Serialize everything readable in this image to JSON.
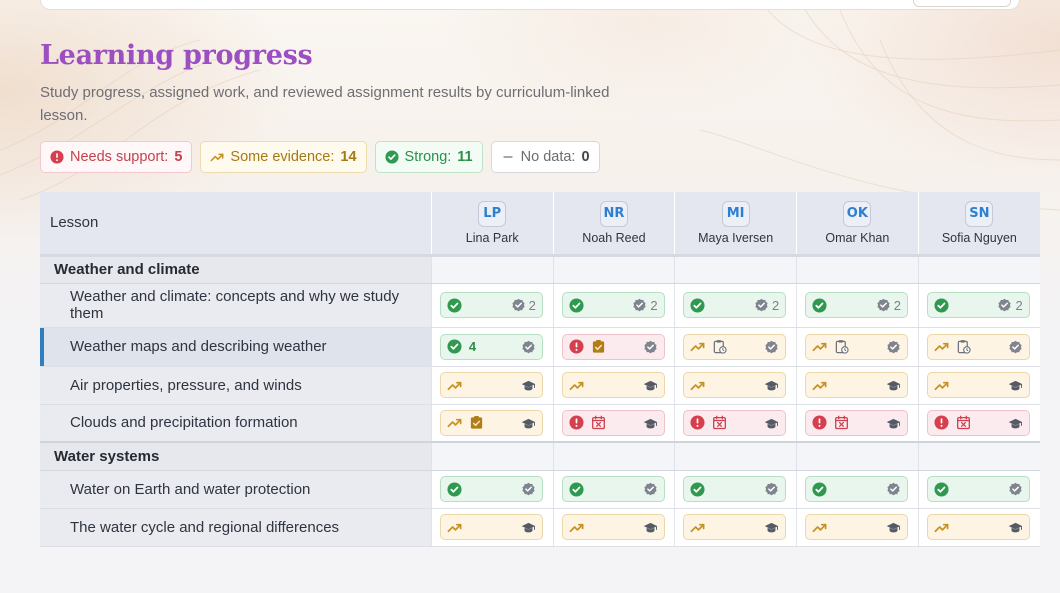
{
  "page": {
    "title": "Learning progress",
    "subtitle": "Study progress, assigned work, and reviewed assignment results by curriculum-linked lesson."
  },
  "summary": [
    {
      "key": "support",
      "label": "Needs support:",
      "count": "5",
      "icon": "alert-circle-icon"
    },
    {
      "key": "some",
      "label": "Some evidence:",
      "count": "14",
      "icon": "trending-up-icon"
    },
    {
      "key": "strong",
      "label": "Strong:",
      "count": "11",
      "icon": "check-circle-icon"
    },
    {
      "key": "nodata",
      "label": "No data:",
      "count": "0",
      "icon": "minus-icon"
    }
  ],
  "grid": {
    "lesson_header": "Lesson",
    "students": [
      {
        "initials": "LP",
        "name": "Lina Park"
      },
      {
        "initials": "NR",
        "name": "Noah Reed"
      },
      {
        "initials": "MI",
        "name": "Maya Iversen"
      },
      {
        "initials": "OK",
        "name": "Omar Khan"
      },
      {
        "initials": "SN",
        "name": "Sofia Nguyen"
      }
    ],
    "sections": [
      {
        "title": "Weather and climate",
        "lessons": [
          {
            "name": "Weather and climate: concepts and why we study them",
            "active": false,
            "cells": [
              {
                "status": "strong",
                "extra": "reviewed",
                "count": "2"
              },
              {
                "status": "strong",
                "extra": "reviewed",
                "count": "2"
              },
              {
                "status": "strong",
                "extra": "reviewed",
                "count": "2"
              },
              {
                "status": "strong",
                "extra": "reviewed",
                "count": "2"
              },
              {
                "status": "strong",
                "extra": "reviewed",
                "count": "2"
              }
            ]
          },
          {
            "name": "Weather maps and describing weather",
            "active": true,
            "cells": [
              {
                "status": "strong",
                "num": "4",
                "extra": "reviewed"
              },
              {
                "status": "support",
                "mid": "assigned",
                "extra": "reviewed"
              },
              {
                "status": "some",
                "mid": "clipboard",
                "extra": "reviewed"
              },
              {
                "status": "some",
                "mid": "clipboard",
                "extra": "reviewed"
              },
              {
                "status": "some",
                "mid": "clipboard",
                "extra": "reviewed"
              }
            ]
          },
          {
            "name": "Air properties, pressure, and winds",
            "active": false,
            "cells": [
              {
                "status": "some",
                "extra": "study"
              },
              {
                "status": "some",
                "extra": "study"
              },
              {
                "status": "some",
                "extra": "study"
              },
              {
                "status": "some",
                "extra": "study"
              },
              {
                "status": "some",
                "extra": "study"
              }
            ]
          },
          {
            "name": "Clouds and precipitation formation",
            "active": false,
            "cells": [
              {
                "status": "some",
                "mid": "assigned",
                "extra": "study"
              },
              {
                "status": "support",
                "mid": "overdue",
                "extra": "study"
              },
              {
                "status": "support",
                "mid": "overdue",
                "extra": "study"
              },
              {
                "status": "support",
                "mid": "overdue",
                "extra": "study"
              },
              {
                "status": "support",
                "mid": "overdue",
                "extra": "study"
              }
            ]
          }
        ]
      },
      {
        "title": "Water systems",
        "lessons": [
          {
            "name": "Water on Earth and water protection",
            "active": false,
            "cells": [
              {
                "status": "strong",
                "extra": "reviewed"
              },
              {
                "status": "strong",
                "extra": "reviewed"
              },
              {
                "status": "strong",
                "extra": "reviewed"
              },
              {
                "status": "strong",
                "extra": "reviewed"
              },
              {
                "status": "strong",
                "extra": "reviewed"
              }
            ]
          },
          {
            "name": "The water cycle and regional differences",
            "active": false,
            "cells": [
              {
                "status": "some",
                "extra": "study"
              },
              {
                "status": "some",
                "extra": "study"
              },
              {
                "status": "some",
                "extra": "study"
              },
              {
                "status": "some",
                "extra": "study"
              },
              {
                "status": "some",
                "extra": "study"
              }
            ]
          }
        ]
      }
    ]
  },
  "colors": {
    "title": "#9b4fc0",
    "support": "#d4404e",
    "some": "#c79022",
    "strong": "#2f9a4f",
    "accent": "#2f7fbf"
  }
}
